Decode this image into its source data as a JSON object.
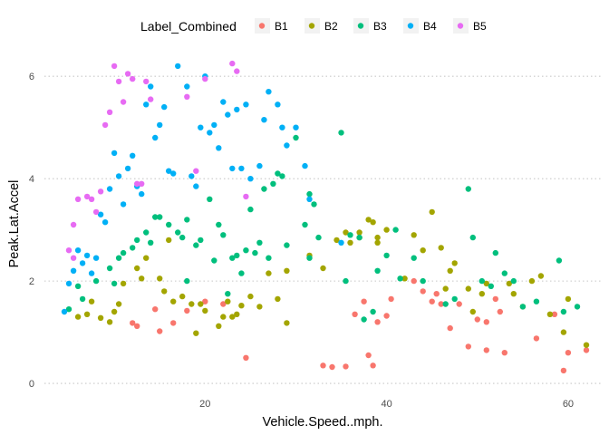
{
  "chart_data": {
    "type": "scatter",
    "xlabel": "Vehicle.Speed..mph.",
    "ylabel": "Peak.Lat.Accel",
    "xlim": [
      2.3,
      63.7
    ],
    "ylim": [
      -0.3,
      6.5
    ],
    "x_ticks": [
      20,
      40,
      60
    ],
    "y_ticks": [
      0,
      2,
      4,
      6
    ],
    "grid": "horizontal dotted",
    "legend": {
      "title": "Label_Combined",
      "position": "top"
    },
    "series": [
      {
        "name": "B1",
        "color": "#F8766D",
        "points": [
          [
            12,
            1.18
          ],
          [
            12.5,
            1.12
          ],
          [
            14.5,
            1.45
          ],
          [
            15,
            1.02
          ],
          [
            16.5,
            1.18
          ],
          [
            18,
            1.42
          ],
          [
            20,
            1.6
          ],
          [
            22,
            1.55
          ],
          [
            24.5,
            0.5
          ],
          [
            33,
            0.35
          ],
          [
            34,
            0.32
          ],
          [
            35.5,
            0.33
          ],
          [
            36.5,
            1.35
          ],
          [
            37.5,
            1.6
          ],
          [
            38,
            0.55
          ],
          [
            38.5,
            0.35
          ],
          [
            39,
            1.2
          ],
          [
            40,
            1.32
          ],
          [
            40.5,
            1.65
          ],
          [
            43,
            2.0
          ],
          [
            44,
            1.8
          ],
          [
            45,
            1.6
          ],
          [
            45.5,
            1.75
          ],
          [
            46,
            1.55
          ],
          [
            47,
            1.08
          ],
          [
            48,
            1.55
          ],
          [
            49,
            0.72
          ],
          [
            50,
            1.25
          ],
          [
            51,
            0.65
          ],
          [
            51,
            1.2
          ],
          [
            52,
            1.65
          ],
          [
            52.5,
            1.4
          ],
          [
            53,
            0.6
          ],
          [
            56.5,
            0.88
          ],
          [
            58.5,
            1.35
          ],
          [
            59.5,
            0.25
          ],
          [
            60,
            0.6
          ],
          [
            62,
            0.65
          ]
        ]
      },
      {
        "name": "B2",
        "color": "#A3A500",
        "points": [
          [
            6,
            1.3
          ],
          [
            7,
            1.35
          ],
          [
            7.5,
            1.6
          ],
          [
            8.5,
            1.28
          ],
          [
            9.5,
            1.2
          ],
          [
            10,
            1.4
          ],
          [
            10.5,
            1.55
          ],
          [
            11,
            1.95
          ],
          [
            12.5,
            2.25
          ],
          [
            13,
            2.05
          ],
          [
            13.5,
            2.45
          ],
          [
            15,
            2.05
          ],
          [
            15.5,
            1.8
          ],
          [
            16,
            2.8
          ],
          [
            16.5,
            1.6
          ],
          [
            17.5,
            1.7
          ],
          [
            18.5,
            1.55
          ],
          [
            19,
            0.98
          ],
          [
            19.5,
            1.55
          ],
          [
            20,
            1.42
          ],
          [
            21.5,
            1.12
          ],
          [
            22,
            1.3
          ],
          [
            22.5,
            1.6
          ],
          [
            23,
            1.3
          ],
          [
            23.5,
            1.35
          ],
          [
            24,
            1.52
          ],
          [
            25,
            1.7
          ],
          [
            26,
            1.5
          ],
          [
            27,
            2.15
          ],
          [
            28,
            1.65
          ],
          [
            29,
            2.2
          ],
          [
            29,
            1.18
          ],
          [
            31.5,
            2.5
          ],
          [
            33,
            2.25
          ],
          [
            34.5,
            2.8
          ],
          [
            35.5,
            2.95
          ],
          [
            36,
            2.75
          ],
          [
            37,
            2.85
          ],
          [
            37,
            2.95
          ],
          [
            38,
            3.2
          ],
          [
            38.5,
            3.15
          ],
          [
            39,
            2.85
          ],
          [
            39,
            2.75
          ],
          [
            40,
            3.0
          ],
          [
            42,
            2.05
          ],
          [
            43,
            2.9
          ],
          [
            44,
            2.6
          ],
          [
            45,
            3.35
          ],
          [
            46,
            2.65
          ],
          [
            46.5,
            1.85
          ],
          [
            47,
            2.2
          ],
          [
            47.5,
            2.35
          ],
          [
            49,
            1.85
          ],
          [
            49.5,
            1.4
          ],
          [
            50.5,
            1.75
          ],
          [
            51,
            1.95
          ],
          [
            53.5,
            1.95
          ],
          [
            54,
            1.75
          ],
          [
            55,
            1.5
          ],
          [
            56,
            2.0
          ],
          [
            57,
            2.1
          ],
          [
            58,
            1.35
          ],
          [
            59.5,
            1.0
          ],
          [
            60,
            1.65
          ],
          [
            62,
            0.75
          ]
        ]
      },
      {
        "name": "B3",
        "color": "#00BF7D",
        "points": [
          [
            5,
            1.45
          ],
          [
            6,
            1.9
          ],
          [
            6.5,
            1.65
          ],
          [
            8,
            2.0
          ],
          [
            9.5,
            2.25
          ],
          [
            10,
            1.95
          ],
          [
            10.5,
            2.45
          ],
          [
            11,
            2.55
          ],
          [
            12,
            2.65
          ],
          [
            12.5,
            2.8
          ],
          [
            13.5,
            2.95
          ],
          [
            14,
            2.75
          ],
          [
            14.5,
            3.25
          ],
          [
            15,
            3.25
          ],
          [
            16,
            3.1
          ],
          [
            17,
            2.95
          ],
          [
            17.5,
            2.85
          ],
          [
            18,
            2.0
          ],
          [
            18,
            3.2
          ],
          [
            19,
            2.7
          ],
          [
            19.5,
            2.8
          ],
          [
            20.5,
            3.6
          ],
          [
            21,
            2.4
          ],
          [
            21.5,
            3.1
          ],
          [
            22,
            2.9
          ],
          [
            22.5,
            1.75
          ],
          [
            23,
            2.45
          ],
          [
            23.5,
            2.5
          ],
          [
            24,
            2.15
          ],
          [
            24.5,
            2.6
          ],
          [
            25,
            3.4
          ],
          [
            25.5,
            2.55
          ],
          [
            26,
            2.75
          ],
          [
            26.5,
            3.8
          ],
          [
            27,
            2.45
          ],
          [
            27.5,
            3.9
          ],
          [
            28,
            4.1
          ],
          [
            28.5,
            4.05
          ],
          [
            29,
            2.7
          ],
          [
            30,
            4.8
          ],
          [
            31,
            3.1
          ],
          [
            31.5,
            2.45
          ],
          [
            31.5,
            3.7
          ],
          [
            32,
            3.5
          ],
          [
            32.5,
            2.85
          ],
          [
            35,
            4.9
          ],
          [
            35.5,
            2.0
          ],
          [
            36,
            2.9
          ],
          [
            37,
            2.85
          ],
          [
            37.5,
            1.25
          ],
          [
            38.5,
            1.4
          ],
          [
            39,
            2.2
          ],
          [
            40,
            2.5
          ],
          [
            41,
            3.0
          ],
          [
            41.5,
            2.05
          ],
          [
            43,
            2.45
          ],
          [
            44,
            2.0
          ],
          [
            46.5,
            1.55
          ],
          [
            47.5,
            1.65
          ],
          [
            49,
            3.8
          ],
          [
            49.5,
            2.85
          ],
          [
            50.5,
            2.0
          ],
          [
            51.5,
            1.9
          ],
          [
            52,
            2.55
          ],
          [
            53,
            2.15
          ],
          [
            54,
            2.0
          ],
          [
            55,
            1.5
          ],
          [
            56.5,
            1.6
          ],
          [
            59,
            2.4
          ],
          [
            59.5,
            1.4
          ],
          [
            61,
            1.5
          ]
        ]
      },
      {
        "name": "B4",
        "color": "#00B0F6",
        "points": [
          [
            4.5,
            1.4
          ],
          [
            5,
            1.95
          ],
          [
            5.5,
            2.2
          ],
          [
            6,
            2.6
          ],
          [
            6.5,
            2.35
          ],
          [
            7,
            2.5
          ],
          [
            7.5,
            2.15
          ],
          [
            8,
            2.45
          ],
          [
            8.5,
            3.3
          ],
          [
            9,
            3.15
          ],
          [
            9.5,
            3.8
          ],
          [
            10,
            4.5
          ],
          [
            10.5,
            4.05
          ],
          [
            11,
            3.5
          ],
          [
            11.5,
            4.2
          ],
          [
            12,
            4.45
          ],
          [
            12.5,
            3.85
          ],
          [
            13,
            3.7
          ],
          [
            13.5,
            5.45
          ],
          [
            14,
            5.8
          ],
          [
            14.5,
            4.8
          ],
          [
            15,
            5.05
          ],
          [
            15.5,
            5.4
          ],
          [
            16,
            4.15
          ],
          [
            16.5,
            4.1
          ],
          [
            17,
            6.2
          ],
          [
            18,
            5.8
          ],
          [
            18.5,
            4.05
          ],
          [
            19,
            3.85
          ],
          [
            19.5,
            5.0
          ],
          [
            20,
            6.0
          ],
          [
            20.5,
            4.9
          ],
          [
            21,
            5.05
          ],
          [
            21.5,
            4.6
          ],
          [
            22,
            5.5
          ],
          [
            22.5,
            5.25
          ],
          [
            23,
            4.2
          ],
          [
            23.5,
            5.35
          ],
          [
            24,
            4.2
          ],
          [
            24.5,
            5.45
          ],
          [
            25,
            4.0
          ],
          [
            26,
            4.25
          ],
          [
            26.5,
            5.15
          ],
          [
            27,
            5.7
          ],
          [
            28,
            5.45
          ],
          [
            28.5,
            5.0
          ],
          [
            29,
            4.65
          ],
          [
            30,
            5.0
          ],
          [
            31,
            4.25
          ],
          [
            31.5,
            3.6
          ],
          [
            35,
            2.75
          ]
        ]
      },
      {
        "name": "B5",
        "color": "#E76BF3",
        "points": [
          [
            5,
            2.6
          ],
          [
            5.5,
            2.45
          ],
          [
            5.5,
            3.1
          ],
          [
            6,
            3.6
          ],
          [
            7,
            3.65
          ],
          [
            7.5,
            3.6
          ],
          [
            8,
            3.35
          ],
          [
            8.5,
            3.75
          ],
          [
            9,
            5.05
          ],
          [
            9.5,
            5.3
          ],
          [
            10,
            6.2
          ],
          [
            10.5,
            5.9
          ],
          [
            11,
            5.5
          ],
          [
            11.5,
            6.05
          ],
          [
            12,
            5.95
          ],
          [
            12.5,
            3.9
          ],
          [
            13,
            3.9
          ],
          [
            13.5,
            5.9
          ],
          [
            14,
            5.55
          ],
          [
            18,
            5.6
          ],
          [
            19,
            4.15
          ],
          [
            20,
            5.95
          ],
          [
            23,
            6.25
          ],
          [
            23.5,
            6.1
          ],
          [
            24.5,
            3.65
          ]
        ]
      }
    ]
  }
}
